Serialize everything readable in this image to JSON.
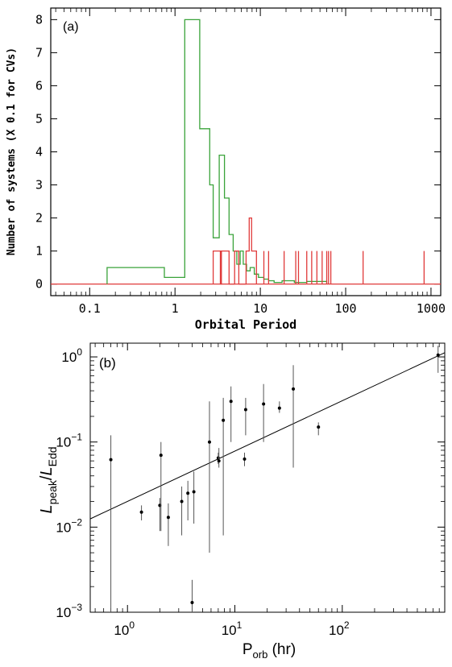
{
  "colors": {
    "cv": "#3aa33a",
    "lmxb": "#e03a3a",
    "axis": "#000000",
    "fit": "#000000"
  },
  "chart_data": [
    {
      "panel_label": "(a)",
      "type": "line",
      "xlabel": "Orbital Period",
      "ylabel": "Number of systems (X 0.1 for CVs)",
      "xscale": "log",
      "xlim": [
        0.035,
        1300
      ],
      "ylim": [
        -0.35,
        8.35
      ],
      "xticks": [
        "0.1",
        "1",
        "10",
        "100",
        "1000"
      ],
      "yticks": [
        "0",
        "1",
        "2",
        "3",
        "4",
        "5",
        "6",
        "7",
        "8"
      ],
      "series": [
        {
          "color": "green",
          "step_x": [
            0.16,
            0.16,
            0.75,
            0.75,
            1.3,
            1.3,
            1.95,
            1.95,
            2.55,
            2.55,
            2.8,
            2.8,
            3.3,
            3.3,
            3.8,
            3.8,
            4.3,
            4.3,
            4.8,
            4.8,
            5.3,
            5.3,
            5.8,
            5.8,
            6.3,
            6.3,
            6.9,
            6.9,
            7.6,
            7.6,
            8.5,
            8.5,
            9.5,
            9.5,
            11,
            11,
            12.5,
            12.5,
            14.5,
            14.5,
            18,
            18,
            25,
            25,
            35,
            35,
            60,
            60
          ],
          "step_y": [
            0,
            0.5,
            0.5,
            0.2,
            0.2,
            8,
            8,
            4.7,
            4.7,
            3.0,
            3.0,
            1.4,
            1.4,
            3.9,
            3.9,
            2.6,
            2.6,
            1.5,
            1.5,
            1.0,
            1.0,
            0.6,
            0.6,
            1.0,
            1.0,
            0.6,
            0.6,
            0.4,
            0.4,
            0.5,
            0.5,
            0.3,
            0.3,
            0.2,
            0.2,
            0.15,
            0.15,
            0.1,
            0.1,
            0.05,
            0.05,
            0.1,
            0.1,
            0.05,
            0.05,
            0.08,
            0.08,
            0
          ]
        },
        {
          "color": "red",
          "baseline": 0,
          "step_x": [
            2.8,
            2.8,
            3.4,
            3.4,
            3.5,
            3.5,
            4.3,
            4.3,
            5.0,
            5.0,
            5.6,
            5.6,
            6.8,
            6.8,
            7.4,
            7.4,
            7.9,
            7.9,
            8.1,
            8.1,
            9.0,
            9.0
          ],
          "step_y": [
            0,
            1,
            1,
            0,
            0,
            1,
            1,
            0,
            0,
            1,
            1,
            0,
            0,
            1,
            1,
            2,
            2,
            1,
            1,
            1,
            1,
            0
          ],
          "spikes": [
            11,
            12.5,
            19,
            26,
            28,
            35,
            40,
            46,
            53,
            60,
            63,
            67,
            160,
            830
          ]
        }
      ]
    },
    {
      "panel_label": "(b)",
      "type": "scatter",
      "xscale": "log",
      "yscale": "log",
      "xlim": [
        0.45,
        900
      ],
      "ylim": [
        0.001,
        1.45
      ],
      "xlabel": "P_orb (hr)",
      "ylabel": "L_peak/L_Edd",
      "xlabel_parts": {
        "main": "P",
        "sub": "orb",
        "tail": " (hr)"
      },
      "ylabel_parts": {
        "a": "L",
        "a_sub": "peak",
        "slash": "/",
        "b": "L",
        "b_sub": "Edd"
      },
      "xticks": [
        {
          "v": 1,
          "label": "10",
          "exp": "0"
        },
        {
          "v": 10,
          "label": "10",
          "exp": "1"
        },
        {
          "v": 100,
          "label": "10",
          "exp": "2"
        }
      ],
      "yticks": [
        {
          "v": 0.001,
          "label": "10",
          "exp": "−3"
        },
        {
          "v": 0.01,
          "label": "10",
          "exp": "−2"
        },
        {
          "v": 0.1,
          "label": "10",
          "exp": "−1"
        },
        {
          "v": 1,
          "label": "10",
          "exp": "0"
        }
      ],
      "points": [
        {
          "x": 0.7,
          "y": 0.062,
          "ylo": 0.00075,
          "yhi": 0.12
        },
        {
          "x": 1.35,
          "y": 0.015,
          "ylo": 0.012,
          "yhi": 0.018
        },
        {
          "x": 2.0,
          "y": 0.018,
          "ylo": 0.009,
          "yhi": 0.022
        },
        {
          "x": 2.05,
          "y": 0.07,
          "ylo": 0.009,
          "yhi": 0.1
        },
        {
          "x": 2.4,
          "y": 0.013,
          "ylo": 0.006,
          "yhi": 0.019
        },
        {
          "x": 3.2,
          "y": 0.02,
          "ylo": 0.008,
          "yhi": 0.03
        },
        {
          "x": 3.65,
          "y": 0.025,
          "ylo": 0.012,
          "yhi": 0.035
        },
        {
          "x": 4.0,
          "y": 0.0013,
          "ylo": 0.001,
          "yhi": 0.0024
        },
        {
          "x": 4.15,
          "y": 0.026,
          "ylo": 0.011,
          "yhi": 0.045
        },
        {
          "x": 5.8,
          "y": 0.1,
          "ylo": 0.005,
          "yhi": 0.3
        },
        {
          "x": 7.0,
          "y": 0.065,
          "ylo": 0.055,
          "yhi": 0.075
        },
        {
          "x": 7.1,
          "y": 0.06,
          "ylo": 0.05,
          "yhi": 0.085
        },
        {
          "x": 7.8,
          "y": 0.18,
          "ylo": 0.008,
          "yhi": 0.33
        },
        {
          "x": 9.2,
          "y": 0.3,
          "ylo": 0.1,
          "yhi": 0.45
        },
        {
          "x": 12.3,
          "y": 0.063,
          "ylo": 0.052,
          "yhi": 0.075
        },
        {
          "x": 12.6,
          "y": 0.24,
          "ylo": 0.12,
          "yhi": 0.33
        },
        {
          "x": 18.5,
          "y": 0.28,
          "ylo": 0.1,
          "yhi": 0.48
        },
        {
          "x": 26.0,
          "y": 0.25,
          "ylo": 0.22,
          "yhi": 0.3
        },
        {
          "x": 35.0,
          "y": 0.42,
          "ylo": 0.05,
          "yhi": 0.8
        },
        {
          "x": 60.0,
          "y": 0.15,
          "ylo": 0.12,
          "yhi": 0.17
        },
        {
          "x": 780.0,
          "y": 1.05,
          "ylo": 0.65,
          "yhi": 1.35
        }
      ],
      "fit_line": {
        "x": [
          0.45,
          900
        ],
        "y": [
          0.0125,
          1.12
        ]
      }
    }
  ]
}
